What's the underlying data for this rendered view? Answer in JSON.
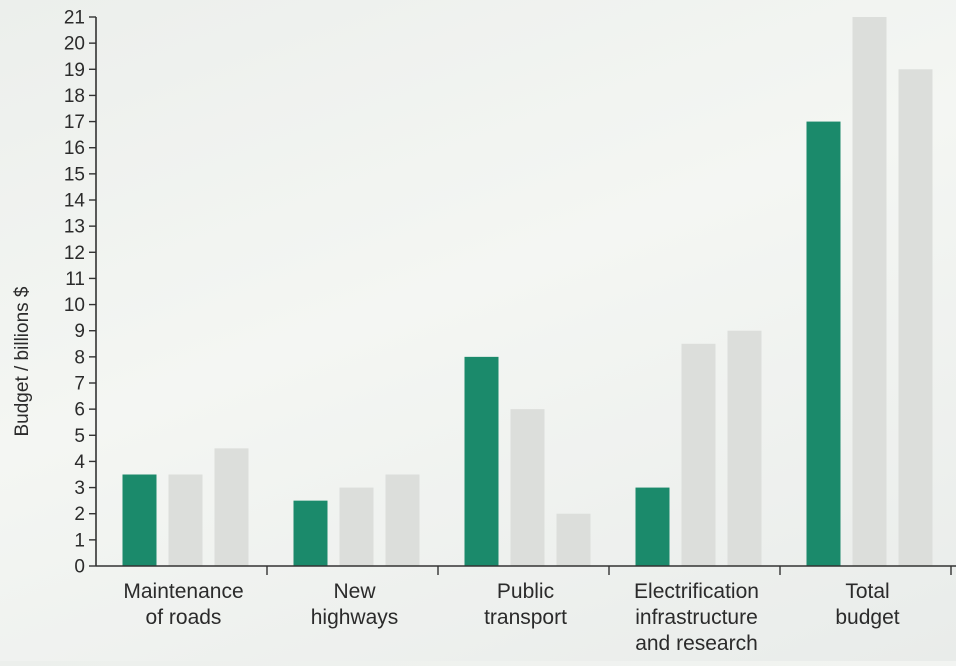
{
  "chart_data": {
    "type": "bar",
    "title": "",
    "xlabel": "",
    "ylabel": "Budget / billions $",
    "ylim": [
      0,
      21
    ],
    "yticks": [
      0,
      1,
      2,
      3,
      4,
      5,
      6,
      7,
      8,
      9,
      10,
      11,
      12,
      13,
      14,
      15,
      16,
      17,
      18,
      19,
      20,
      21
    ],
    "grid": false,
    "legend": "none",
    "categories": [
      [
        "Maintenance",
        "of roads"
      ],
      [
        "New",
        "highways"
      ],
      [
        "Public",
        "transport"
      ],
      [
        "Electrification",
        "infrastructure",
        "and research"
      ],
      [
        "Total",
        "budget"
      ]
    ],
    "series": [
      {
        "color": "#1b8a6b",
        "values": [
          3.5,
          2.5,
          8,
          3,
          17
        ]
      },
      {
        "color": "#dcdedb",
        "values": [
          3.5,
          3,
          6,
          8.5,
          21
        ]
      },
      {
        "color": "#dcdedb",
        "values": [
          4.5,
          3.5,
          2,
          9,
          19
        ]
      }
    ]
  }
}
